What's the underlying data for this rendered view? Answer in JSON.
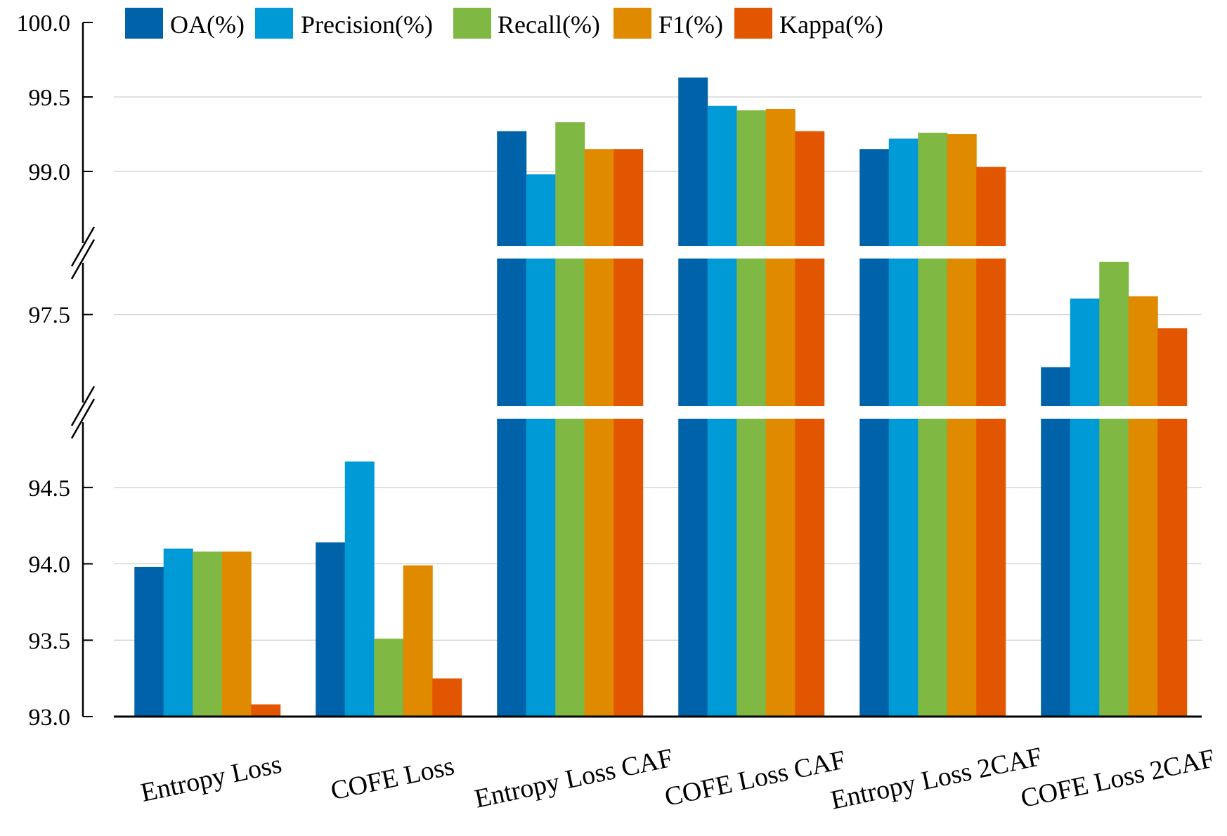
{
  "chart_data": {
    "type": "bar",
    "title": "",
    "xlabel": "",
    "ylabel": "",
    "categories": [
      "Entropy Loss",
      "COFE Loss",
      "Entropy Loss CAF",
      "COFE Loss CAF",
      "Entropy Loss 2CAF",
      "COFE Loss 2CAF"
    ],
    "series": [
      {
        "name": "OA(%)",
        "color": "#0062a8",
        "values": [
          93.98,
          94.14,
          99.27,
          99.63,
          99.15,
          97.27
        ]
      },
      {
        "name": "Precision(%)",
        "color": "#009bd6",
        "values": [
          94.1,
          94.67,
          98.98,
          99.44,
          99.22,
          97.57
        ]
      },
      {
        "name": "Recall(%)",
        "color": "#7fb843",
        "values": [
          94.08,
          93.51,
          99.33,
          99.41,
          99.26,
          97.73
        ]
      },
      {
        "name": "F1(%)",
        "color": "#e08a00",
        "values": [
          94.08,
          93.99,
          99.15,
          99.42,
          99.25,
          97.58
        ]
      },
      {
        "name": "Kappa(%)",
        "color": "#e35600",
        "values": [
          93.08,
          93.25,
          99.15,
          99.27,
          99.03,
          97.44
        ]
      }
    ],
    "axis_segments": [
      {
        "range": [
          93.0,
          94.95
        ],
        "ticks": [
          "93.0",
          "93.5",
          "94.0",
          "94.5"
        ]
      },
      {
        "range": [
          97.1,
          97.8
        ],
        "ticks": [
          "97.5"
        ]
      },
      {
        "range": [
          98.5,
          100.0
        ],
        "ticks": [
          "99.0",
          "99.5",
          "100.0"
        ]
      }
    ],
    "ylim": [
      93.0,
      100.0
    ],
    "grid": true,
    "legend_position": "top"
  }
}
